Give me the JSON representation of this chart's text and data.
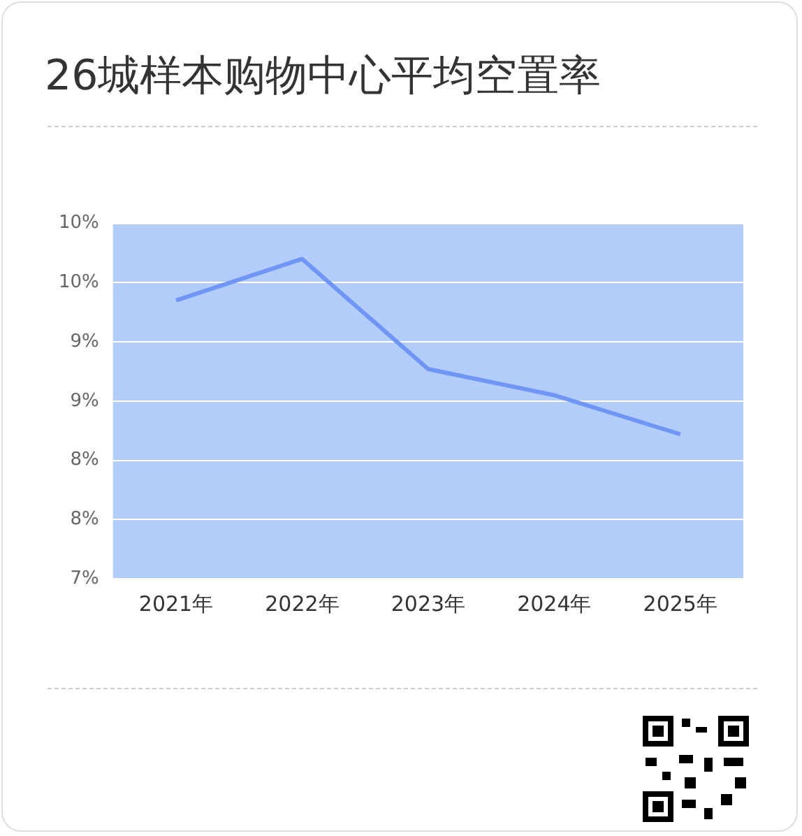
{
  "chart_data": {
    "type": "line",
    "title": "26城样本购物中心平均空置率",
    "categories": [
      "2021年",
      "2022年",
      "2023年",
      "2024年",
      "2025年"
    ],
    "series": [
      {
        "color": "#6f95f5",
        "values": [
          9.35,
          9.7,
          8.77,
          8.55,
          8.22
        ]
      }
    ],
    "ylim": [
      7,
      10
    ],
    "yticks": [
      {
        "value": 7,
        "label": "7%"
      },
      {
        "value": 7.5,
        "label": "8%"
      },
      {
        "value": 8,
        "label": "8%"
      },
      {
        "value": 8.5,
        "label": "9%"
      },
      {
        "value": 9,
        "label": "9%"
      },
      {
        "value": 9.5,
        "label": "10%"
      },
      {
        "value": 10,
        "label": "10%"
      }
    ],
    "grid": "y",
    "legend": false,
    "marker": "none",
    "line_style": "solid"
  }
}
